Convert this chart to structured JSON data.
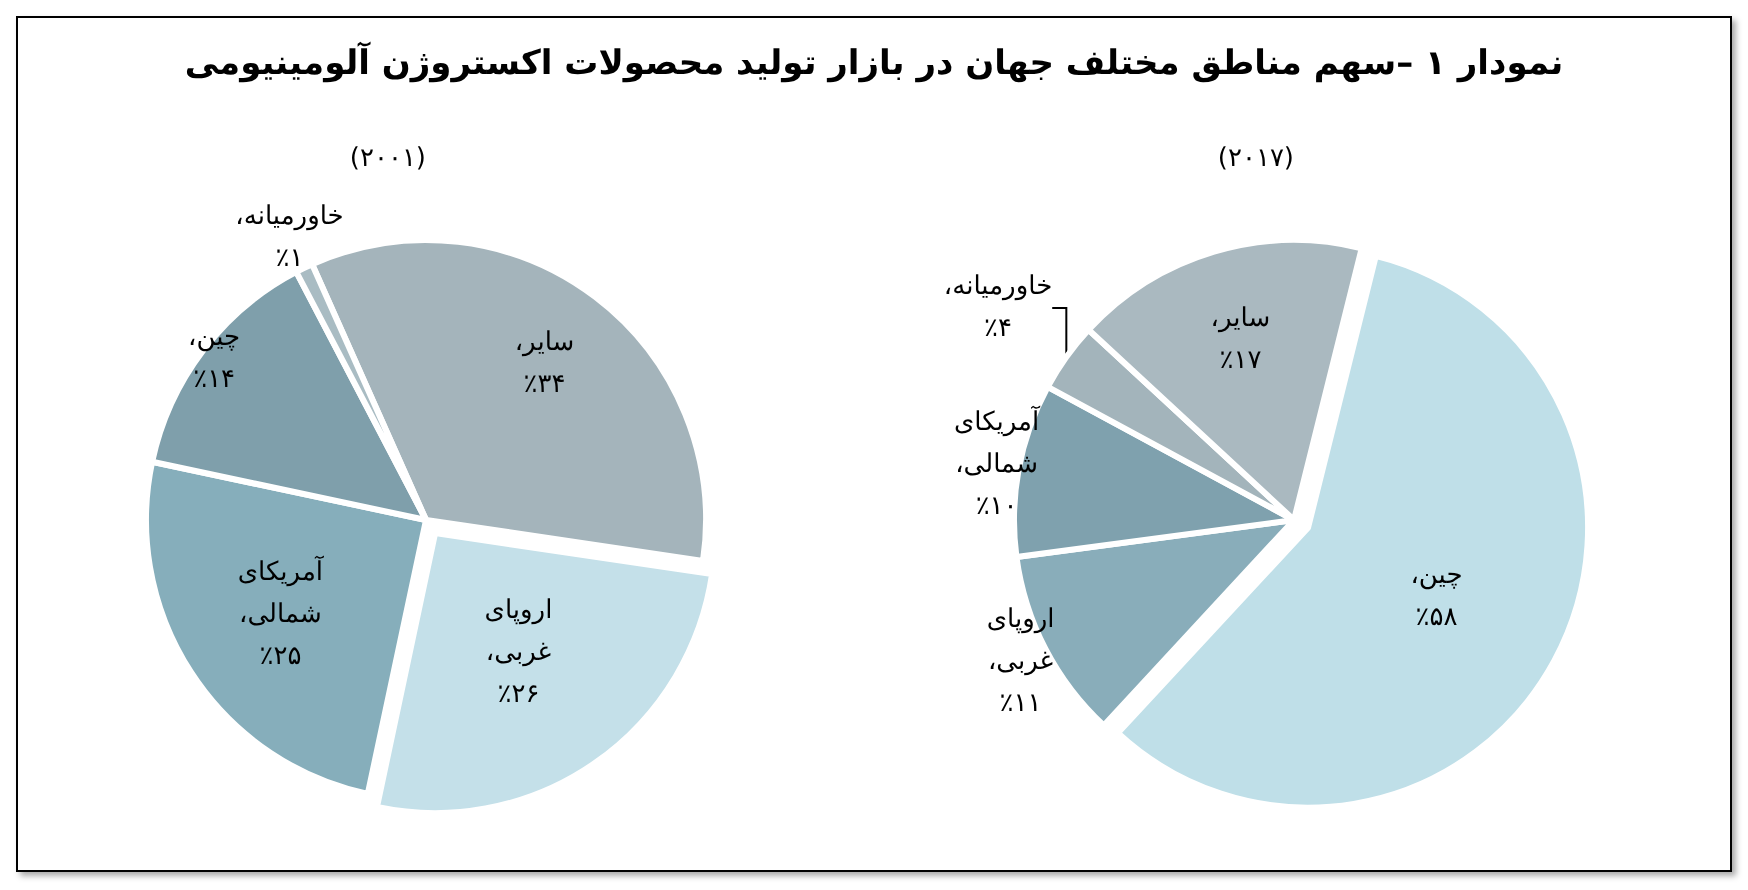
{
  "chart_data": [
    {
      "type": "pie",
      "title": "نمودار ۱ –سهم مناطق مختلف جهان در بازار تولید محصولات اکستروژن آلومینیومی",
      "subtitle": "(۲۰۰۱)",
      "categories": [
        "سایر،",
        "اروپای غربی،",
        "آمریکای شمالی،",
        "چین،",
        "خاورمیانه،"
      ],
      "values": [
        34,
        26,
        25,
        14,
        1
      ],
      "colors": [
        "#a4b4bb",
        "#c4e0e9",
        "#86aebb",
        "#7f9fab",
        "#a9bcc3"
      ],
      "value_labels": [
        "٪۳۴",
        "٪۲۶",
        "٪۲۵",
        "٪۱۴",
        "٪۱"
      ]
    },
    {
      "type": "pie",
      "subtitle": "(۲۰۱۷)",
      "categories": [
        "چین،",
        "اروپای غربی،",
        "آمریکای شمالی،",
        "خاورمیانه،",
        "سایر،"
      ],
      "values": [
        58,
        11,
        10,
        4,
        17
      ],
      "colors": [
        "#bfdfe8",
        "#89adba",
        "#7fa1ae",
        "#a3b4bb",
        "#aab9c0"
      ],
      "value_labels": [
        "٪۵۸",
        "٪۱۱",
        "٪۱۰",
        "٪۴",
        "٪۱۷"
      ]
    }
  ]
}
